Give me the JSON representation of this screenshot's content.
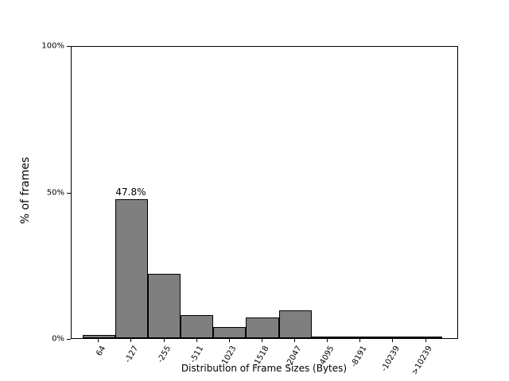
{
  "chart_data": {
    "type": "bar",
    "title": "",
    "xlabel": "Distribution of Frame Sizes (Bytes)",
    "ylabel": "% of frames",
    "categories": [
      "64",
      "-127",
      "-255",
      "-511",
      "-1023",
      "-1518",
      "-2047",
      "-4095",
      "-8191",
      "-10239",
      ">10239"
    ],
    "values": [
      1.2,
      47.8,
      22.0,
      7.9,
      3.8,
      7.0,
      9.5,
      0.1,
      0.1,
      0.1,
      0.1
    ],
    "ylim": [
      0,
      100
    ],
    "yticks": [
      {
        "label": "0%",
        "value": 0
      },
      {
        "label": "50%",
        "value": 50
      },
      {
        "label": "100%",
        "value": 100
      }
    ],
    "annotation": {
      "text": "47.8%",
      "bar_index": 1
    },
    "bar_color": "#7f7f7f",
    "bar_edge_color": "#000000",
    "grid": false,
    "legend_position": "none"
  }
}
